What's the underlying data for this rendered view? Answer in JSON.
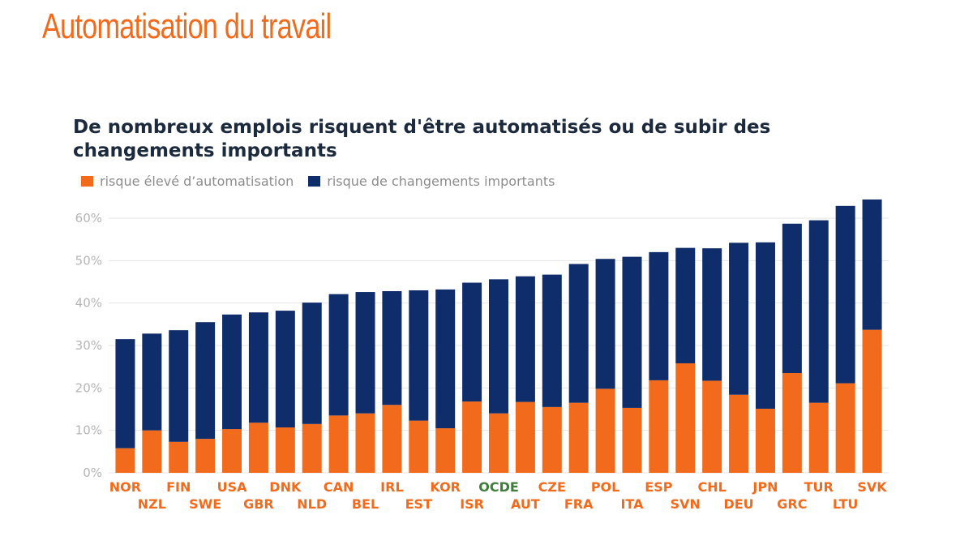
{
  "page": {
    "title": "Automatisation du travail"
  },
  "colors": {
    "orange": "#f26a1b",
    "navy": "#0f2d6b",
    "ocde_label": "#3f7d3a",
    "grid": "#e6e6e6",
    "axis_text": "#b5b5b5"
  },
  "legend": {
    "items": [
      {
        "label": "risque élevé d’automatisation",
        "color": "#f26a1b"
      },
      {
        "label": "risque de changements importants",
        "color": "#0f2d6b"
      }
    ]
  },
  "chart_data": {
    "type": "bar",
    "stacked": true,
    "title": "De nombreux emplois risquent d'être automatisés ou de subir des changements importants",
    "xlabel": "",
    "ylabel": "",
    "ylim": [
      0,
      60
    ],
    "yticks": [
      "0%",
      "10%",
      "20%",
      "30%",
      "40%",
      "50%",
      "60%"
    ],
    "grid": true,
    "legend_position": "top-left",
    "categories": [
      "NOR",
      "NZL",
      "FIN",
      "SWE",
      "USA",
      "GBR",
      "DNK",
      "NLD",
      "CAN",
      "BEL",
      "IRL",
      "EST",
      "KOR",
      "ISR",
      "OCDE",
      "AUT",
      "CZE",
      "FRA",
      "POL",
      "ITA",
      "ESP",
      "SVN",
      "CHL",
      "DEU",
      "JPN",
      "GRC",
      "TUR",
      "LTU",
      "SVK"
    ],
    "series": [
      {
        "name": "risque élevé d’automatisation",
        "values": [
          5.8,
          10.0,
          7.3,
          8.0,
          10.3,
          11.8,
          10.7,
          11.5,
          13.5,
          14.0,
          16.0,
          12.3,
          10.5,
          16.8,
          14.0,
          16.7,
          15.5,
          16.5,
          19.8,
          15.3,
          21.8,
          25.8,
          21.7,
          18.4,
          15.1,
          23.5,
          16.5,
          21.1,
          33.7
        ]
      },
      {
        "name": "risque de changements importants",
        "values": [
          25.7,
          22.8,
          26.3,
          27.5,
          27.0,
          26.0,
          27.5,
          28.6,
          28.6,
          28.6,
          26.8,
          30.7,
          32.7,
          28.0,
          31.6,
          29.6,
          31.2,
          32.7,
          30.6,
          35.6,
          30.2,
          27.2,
          31.2,
          35.8,
          39.2,
          35.2,
          43.0,
          41.8,
          30.7
        ]
      }
    ]
  }
}
